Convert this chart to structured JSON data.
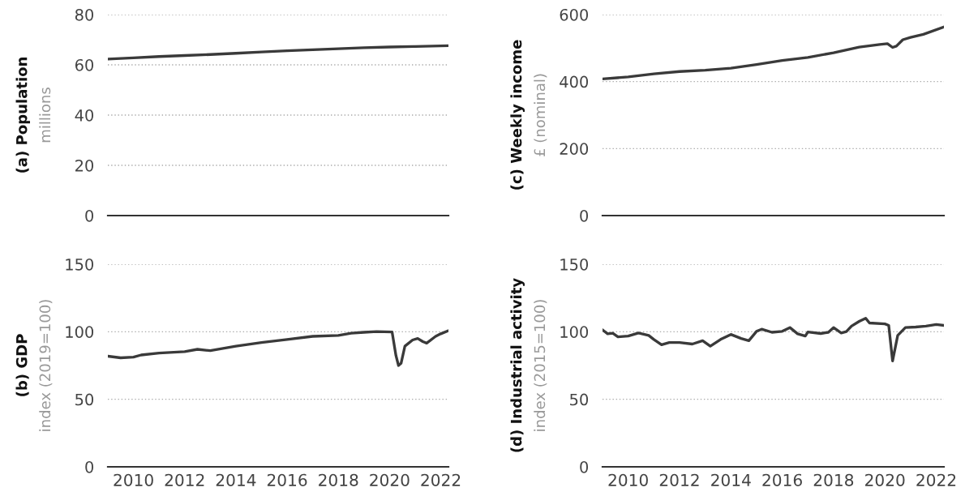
{
  "chart_data": [
    {
      "type": "line",
      "ylabel": "(a) Population",
      "subtitle": "millions",
      "tick_labels": "y",
      "grid": "y",
      "xlim": [
        2009.0,
        2022.3
      ],
      "xticks": [
        2010,
        2012,
        2014,
        2016,
        2018,
        2020,
        2022
      ],
      "ylim": [
        0,
        80
      ],
      "yticks": [
        0,
        20,
        40,
        60,
        80
      ],
      "series": [
        {
          "color": "#3a3a3a",
          "x": [
            2009.0,
            2010.0,
            2011.0,
            2012.0,
            2013.0,
            2014.0,
            2015.0,
            2016.0,
            2017.0,
            2018.0,
            2019.0,
            2020.0,
            2021.0,
            2022.3
          ],
          "values": [
            62.3,
            62.8,
            63.3,
            63.7,
            64.1,
            64.6,
            65.1,
            65.6,
            66.0,
            66.4,
            66.8,
            67.1,
            67.3,
            67.6
          ]
        }
      ]
    },
    {
      "type": "line",
      "ylabel": "(c) Weekly income",
      "subtitle": "£ (nominal)",
      "tick_labels": "y",
      "grid": "y",
      "xlim": [
        2009.0,
        2022.3
      ],
      "xticks": [
        2010,
        2012,
        2014,
        2016,
        2018,
        2020,
        2022
      ],
      "ylim": [
        0,
        600
      ],
      "yticks": [
        0,
        200,
        400,
        600
      ],
      "series": [
        {
          "color": "#3a3a3a",
          "x": [
            2009.0,
            2010.0,
            2011.0,
            2012.0,
            2013.0,
            2014.0,
            2015.0,
            2016.0,
            2017.0,
            2018.0,
            2019.0,
            2019.8,
            2020.1,
            2020.3,
            2020.45,
            2020.7,
            2021.0,
            2021.5,
            2022.3
          ],
          "values": [
            408,
            414,
            423,
            430,
            434,
            440,
            451,
            463,
            472,
            486,
            503,
            511,
            513,
            502,
            506,
            525,
            532,
            541,
            563
          ]
        }
      ]
    },
    {
      "type": "line",
      "ylabel": "(b) GDP",
      "subtitle": "index (2019=100)",
      "grid": "y",
      "xlim": [
        2009.0,
        2022.3
      ],
      "xticks": [
        2010,
        2012,
        2014,
        2016,
        2018,
        2020,
        2022
      ],
      "ylim": [
        0,
        150
      ],
      "yticks": [
        0,
        50,
        100,
        150
      ],
      "series": [
        {
          "color": "#3a3a3a",
          "x": [
            2009.0,
            2009.5,
            2010.0,
            2010.3,
            2011.0,
            2012.0,
            2012.5,
            2013.0,
            2014.0,
            2015.0,
            2016.0,
            2017.0,
            2018.0,
            2018.5,
            2019.0,
            2019.5,
            2020.1,
            2020.25,
            2020.35,
            2020.45,
            2020.6,
            2020.9,
            2021.1,
            2021.3,
            2021.45,
            2021.8,
            2022.0,
            2022.3
          ],
          "values": [
            81.9,
            80.7,
            81.2,
            82.8,
            84.2,
            85.3,
            87.0,
            86.0,
            89.3,
            92.0,
            94.3,
            96.6,
            97.3,
            98.9,
            99.6,
            100.1,
            99.8,
            82.4,
            75.0,
            76.6,
            89.3,
            93.9,
            95.0,
            92.7,
            91.6,
            96.6,
            98.5,
            100.8
          ]
        }
      ]
    },
    {
      "type": "line",
      "ylabel": "(d) Industrial activity",
      "subtitle": "index (2015=100)",
      "grid": "y",
      "xlim": [
        2009.0,
        2022.3
      ],
      "xticks": [
        2010,
        2012,
        2014,
        2016,
        2018,
        2020,
        2022
      ],
      "ylim": [
        0,
        150
      ],
      "yticks": [
        0,
        50,
        100,
        150
      ],
      "series": [
        {
          "color": "#3a3a3a",
          "x": [
            2009.0,
            2009.2,
            2009.4,
            2009.6,
            2010.0,
            2010.4,
            2010.8,
            2011.0,
            2011.3,
            2011.6,
            2012.0,
            2012.5,
            2012.9,
            2013.2,
            2013.6,
            2014.0,
            2014.4,
            2014.7,
            2015.0,
            2015.2,
            2015.6,
            2016.0,
            2016.3,
            2016.6,
            2016.9,
            2017.0,
            2017.5,
            2017.8,
            2018.0,
            2018.3,
            2018.5,
            2018.7,
            2019.0,
            2019.25,
            2019.4,
            2020.0,
            2020.15,
            2020.3,
            2020.5,
            2020.8,
            2021.2,
            2021.6,
            2022.0,
            2022.3
          ],
          "values": [
            101.4,
            98.5,
            98.9,
            96.2,
            96.8,
            99.1,
            97.3,
            94.3,
            90.4,
            92.0,
            92.0,
            90.9,
            93.4,
            89.3,
            94.3,
            98.0,
            95.0,
            93.4,
            100.3,
            101.9,
            99.6,
            100.3,
            103.1,
            98.5,
            96.8,
            99.8,
            98.7,
            99.6,
            103.1,
            99.1,
            100.1,
            104.2,
            107.7,
            110.0,
            106.5,
            105.8,
            104.7,
            78.4,
            97.3,
            103.1,
            103.5,
            104.2,
            105.4,
            104.7
          ]
        }
      ]
    }
  ]
}
